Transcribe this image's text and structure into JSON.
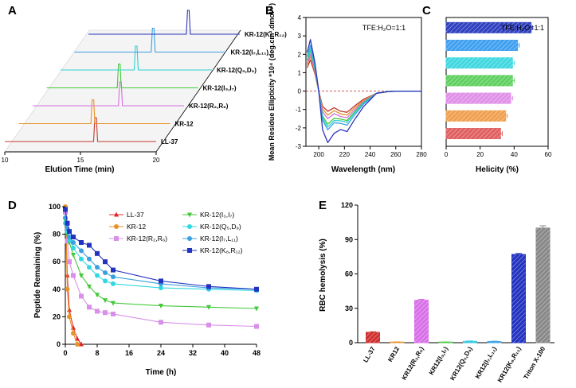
{
  "panel_labels": [
    "A",
    "B",
    "C",
    "D",
    "E"
  ],
  "chart_data": [
    {
      "panel": "A",
      "type": "line",
      "title": "",
      "xlabel": "Elution Time (min)",
      "xlim": [
        10,
        20
      ],
      "xticks": [
        "10",
        "15",
        "20"
      ],
      "series": [
        {
          "name": "LL-37",
          "peak_time": 16.0,
          "color": "#c0392b"
        },
        {
          "name": "KR-12",
          "peak_time": 14.9,
          "color": "#e8922a"
        },
        {
          "name": "KR-12(R₂,R₆)",
          "peak_time": 15.8,
          "color": "#d66ee0"
        },
        {
          "name": "KR-12(I₃,I₇)",
          "peak_time": 14.8,
          "color": "#44c83a"
        },
        {
          "name": "KR-12(Q₅,D₉)",
          "peak_time": 15.0,
          "color": "#2ecfd0"
        },
        {
          "name": "KR-12(I₇,L₁₁)",
          "peak_time": 15.2,
          "color": "#3aa0e0"
        },
        {
          "name": "KR-12(K₈,R₁₂)",
          "peak_time": 16.6,
          "color": "#2d35b8"
        }
      ]
    },
    {
      "panel": "B",
      "type": "line",
      "annotation": "TFE:H₂O=1:1",
      "xlabel": "Wavelength (nm)",
      "ylabel": "Mean Residue Ellipticity *10⁴ (deg.cm².dmol⁻¹)",
      "xlim": [
        190,
        280
      ],
      "ylim": [
        -3,
        4
      ],
      "xticks": [
        "200",
        "220",
        "240",
        "260",
        "280"
      ],
      "yticks": [
        "-3",
        "-2",
        "-1",
        "0",
        "1",
        "2",
        "3",
        "4"
      ],
      "series": [
        {
          "name": "LL-37",
          "color": "#c0392b",
          "peak": 1.7,
          "min1": -1.1,
          "min2": -1.15
        },
        {
          "name": "KR-12",
          "color": "#e8922a",
          "peak": 1.9,
          "min1": -1.3,
          "min2": -1.3
        },
        {
          "name": "KR-12(R₂,R₆)",
          "color": "#d66ee0",
          "peak": 2.0,
          "min1": -1.5,
          "min2": -1.45
        },
        {
          "name": "KR-12(I₃,I₇)",
          "color": "#44c83a",
          "peak": 2.2,
          "min1": -1.8,
          "min2": -1.6
        },
        {
          "name": "KR-12(Q₅,D₉)",
          "color": "#2ecfd0",
          "peak": 2.3,
          "min1": -1.95,
          "min2": -1.7
        },
        {
          "name": "KR-12(I₇,L₁₁)",
          "color": "#3aa0e0",
          "peak": 2.5,
          "min1": -2.1,
          "min2": -1.85
        },
        {
          "name": "KR-12(K₈,R₁₂)",
          "color": "#2d35b8",
          "peak": 2.8,
          "min1": -2.8,
          "min2": -2.2
        }
      ]
    },
    {
      "panel": "C",
      "type": "bar",
      "orientation": "horizontal",
      "annotation": "TFE:H₂O=1:1",
      "xlabel": "Helicity (%)",
      "xlim": [
        0,
        60
      ],
      "xticks": [
        "0",
        "20",
        "40",
        "60"
      ],
      "categories": [
        "LL-37",
        "KR-12",
        "KR-12(R₂,R₆)",
        "KR-12(I₃,I₇)",
        "KR-12(Q₅,D₉)",
        "KR-12(I₇,L₁₁)",
        "KR-12(K₈,R₁₂)"
      ],
      "values": [
        32,
        35,
        38,
        39,
        39,
        42,
        50
      ],
      "errors": [
        1.0,
        1.0,
        1.2,
        1.2,
        1.2,
        1.0,
        0.8
      ],
      "colors": [
        "#e06060",
        "#f0a050",
        "#e090e8",
        "#60d060",
        "#40d8e0",
        "#40a0f0",
        "#3040c0"
      ]
    },
    {
      "panel": "D",
      "type": "line",
      "xlabel": "Time (h)",
      "ylabel": "Peptide Remaining (%)",
      "xlim": [
        0,
        48
      ],
      "ylim": [
        0,
        100
      ],
      "xticks": [
        "0",
        "8",
        "16",
        "24",
        "32",
        "40",
        "48"
      ],
      "yticks": [
        "0",
        "20",
        "40",
        "60",
        "80",
        "100"
      ],
      "series": [
        {
          "name": "LL-37",
          "color": "#e02828",
          "marker": "triangle",
          "x": [
            0,
            0.5,
            1,
            2,
            3,
            4
          ],
          "y": [
            100,
            50,
            25,
            12,
            4,
            0
          ]
        },
        {
          "name": "KR-12",
          "color": "#e8922a",
          "marker": "circle",
          "x": [
            0,
            0.5,
            1,
            2,
            3
          ],
          "y": [
            100,
            40,
            20,
            8,
            0
          ]
        },
        {
          "name": "KR-12(R₂,R₆)",
          "color": "#d890e8",
          "marker": "square",
          "x": [
            0,
            0.5,
            1,
            2,
            4,
            6,
            8,
            10,
            12,
            24,
            36,
            48
          ],
          "y": [
            96,
            75,
            60,
            50,
            35,
            27,
            24,
            23,
            22,
            16,
            14,
            13
          ]
        },
        {
          "name": "KR-12(I₃,I₇)",
          "color": "#44c83a",
          "marker": "triangle-down",
          "x": [
            0,
            0.5,
            1,
            2,
            4,
            6,
            8,
            10,
            12,
            24,
            36,
            48
          ],
          "y": [
            90,
            80,
            74,
            65,
            50,
            42,
            36,
            32,
            30,
            28,
            27,
            26
          ]
        },
        {
          "name": "KR-12(Q₅,D₉)",
          "color": "#30d8e0",
          "marker": "circle",
          "x": [
            0,
            0.5,
            1,
            2,
            4,
            6,
            8,
            10,
            12,
            24,
            36,
            48
          ],
          "y": [
            88,
            82,
            76,
            70,
            62,
            56,
            50,
            46,
            44,
            41,
            40,
            39
          ]
        },
        {
          "name": "KR-12(I₇,L₁₁)",
          "color": "#3aa0e0",
          "marker": "circle",
          "x": [
            0,
            0.5,
            1,
            2,
            4,
            6,
            8,
            10,
            12,
            24,
            36,
            48
          ],
          "y": [
            92,
            84,
            78,
            74,
            68,
            62,
            56,
            52,
            49,
            44,
            41,
            40
          ]
        },
        {
          "name": "KR-12(K₈,R₁₂)",
          "color": "#2233c0",
          "marker": "square",
          "x": [
            0,
            0.5,
            1,
            2,
            4,
            6,
            8,
            10,
            12,
            24,
            36,
            48
          ],
          "y": [
            98,
            88,
            82,
            78,
            74,
            72,
            66,
            60,
            54,
            46,
            42,
            40
          ]
        }
      ]
    },
    {
      "panel": "E",
      "type": "bar",
      "ylabel": "RBC hemolysis (%)",
      "ylim": [
        0,
        120
      ],
      "yticks": [
        "0",
        "30",
        "60",
        "90",
        "120"
      ],
      "categories": [
        "LL-37",
        "KR12",
        "KR12(R₂,R₆)",
        "KR12(I₃,I₇)",
        "KR12(Q₅,D₉)",
        "KR12(I₇,L₁₁)",
        "KR12(K₈,R₁₂)",
        "Triton X-100"
      ],
      "values": [
        9,
        0.5,
        37,
        0.3,
        1.2,
        1.0,
        77,
        100
      ],
      "errors": [
        0.5,
        0.2,
        0.8,
        0.2,
        0.3,
        0.3,
        0.8,
        2.0
      ],
      "colors": [
        "#d03030",
        "#e8922a",
        "#d870e8",
        "#44c83a",
        "#30c8e0",
        "#3aa0e0",
        "#2233c0",
        "#888888"
      ]
    }
  ]
}
